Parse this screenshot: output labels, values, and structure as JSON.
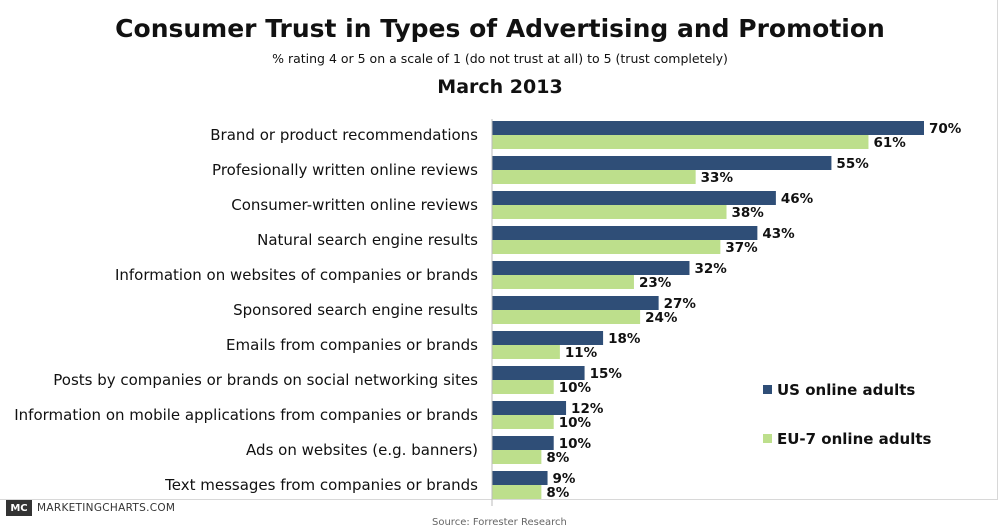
{
  "header": {
    "title": "Consumer Trust in Types of Advertising and Promotion",
    "subtitle": "% rating 4 or 5 on a scale of 1 (do not trust at all) to 5 (trust completely)",
    "date": "March 2013"
  },
  "footer": {
    "brand_mark": "MC",
    "brand_text": "MARKETINGCHARTS.COM",
    "source": "Source: Forrester Research"
  },
  "colors": {
    "us": "#2f4e77",
    "eu": "#bddf8c"
  },
  "chart_data": {
    "type": "bar",
    "orientation": "horizontal",
    "categories": [
      "Brand or product recommendations",
      "Profesionally written online reviews",
      "Consumer-written online reviews",
      "Natural search engine results",
      "Information on websites of companies or brands",
      "Sponsored search engine results",
      "Emails from companies or brands",
      "Posts by companies or brands on social networking sites",
      "Information on mobile applications from companies or brands",
      "Ads on websites (e.g. banners)",
      "Text messages from companies or brands"
    ],
    "series": [
      {
        "name": "US online adults",
        "values": [
          70,
          55,
          46,
          43,
          32,
          27,
          18,
          15,
          12,
          10,
          9
        ]
      },
      {
        "name": "EU-7 online adults",
        "values": [
          61,
          33,
          38,
          37,
          23,
          24,
          11,
          10,
          10,
          8,
          8
        ]
      }
    ],
    "unit": "%",
    "xlim": [
      0,
      70
    ],
    "legend_position": "bottom-right",
    "grid": false
  }
}
